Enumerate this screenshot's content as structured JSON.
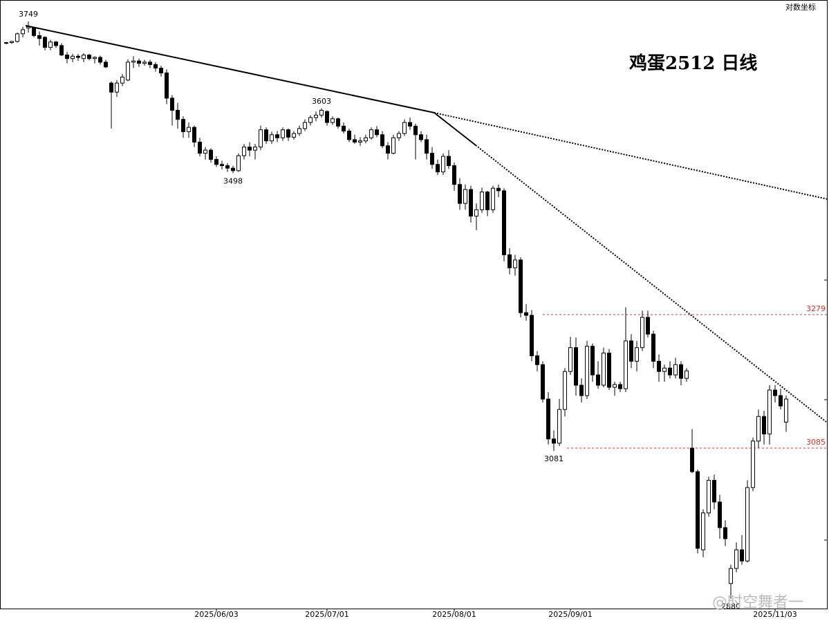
{
  "chart_data": {
    "type": "candlestick",
    "title": "鸡蛋2512 日线",
    "scale_note": "对数坐标",
    "log_scale": true,
    "watermark": "@时空舞者一",
    "up_color": "#ffffff",
    "down_color": "#000000",
    "line_color": "#000000",
    "hline_color": "#e0302a",
    "ylim": [
      2867,
      3786
    ],
    "categories": [
      null,
      null,
      null,
      null,
      null,
      null,
      null,
      null,
      null,
      null,
      null,
      null,
      null,
      null,
      null,
      null,
      null,
      null,
      null,
      null,
      null,
      null,
      null,
      null,
      null,
      null,
      null,
      null,
      null,
      null,
      null,
      null,
      null,
      null,
      null,
      null,
      null,
      null,
      "2025/06/03",
      null,
      null,
      null,
      null,
      null,
      null,
      null,
      null,
      null,
      null,
      null,
      null,
      null,
      null,
      null,
      null,
      null,
      null,
      null,
      "2025/07/01",
      null,
      null,
      null,
      null,
      null,
      null,
      null,
      null,
      null,
      null,
      null,
      null,
      null,
      null,
      null,
      null,
      null,
      null,
      null,
      null,
      null,
      null,
      "2025/08/01",
      null,
      null,
      null,
      null,
      null,
      null,
      null,
      null,
      null,
      null,
      null,
      null,
      null,
      null,
      null,
      null,
      null,
      null,
      null,
      null,
      "2025/09/01",
      null,
      null,
      null,
      null,
      null,
      null,
      null,
      null,
      null,
      null,
      null,
      null,
      null,
      null,
      null,
      null,
      null,
      null,
      null,
      null,
      null,
      null,
      null,
      null,
      null,
      null,
      null,
      null,
      null,
      null,
      null,
      null,
      null,
      null,
      null,
      null,
      "2025/11/03",
      null,
      null
    ],
    "ohlc": [
      [
        3712,
        3714,
        3710,
        3713
      ],
      [
        3713,
        3716,
        3711,
        3715
      ],
      [
        3715,
        3730,
        3713,
        3728
      ],
      [
        3728,
        3740,
        3722,
        3735
      ],
      [
        3738,
        3749,
        3730,
        3740
      ],
      [
        3738,
        3740,
        3722,
        3725
      ],
      [
        3725,
        3732,
        3708,
        3720
      ],
      [
        3722,
        3724,
        3700,
        3705
      ],
      [
        3705,
        3718,
        3700,
        3714
      ],
      [
        3714,
        3716,
        3704,
        3708
      ],
      [
        3708,
        3712,
        3690,
        3692
      ],
      [
        3692,
        3697,
        3678,
        3686
      ],
      [
        3686,
        3694,
        3680,
        3690
      ],
      [
        3690,
        3694,
        3682,
        3688
      ],
      [
        3686,
        3695,
        3680,
        3692
      ],
      [
        3692,
        3694,
        3683,
        3686
      ],
      [
        3686,
        3690,
        3678,
        3688
      ],
      [
        3688,
        3691,
        3676,
        3680
      ],
      [
        3680,
        3684,
        3670,
        3672
      ],
      [
        3645,
        3648,
        3570,
        3630
      ],
      [
        3630,
        3650,
        3622,
        3645
      ],
      [
        3645,
        3660,
        3640,
        3655
      ],
      [
        3650,
        3685,
        3648,
        3680
      ],
      [
        3680,
        3690,
        3670,
        3682
      ],
      [
        3682,
        3686,
        3672,
        3678
      ],
      [
        3678,
        3684,
        3674,
        3680
      ],
      [
        3680,
        3684,
        3670,
        3676
      ],
      [
        3676,
        3680,
        3664,
        3670
      ],
      [
        3670,
        3674,
        3656,
        3662
      ],
      [
        3662,
        3668,
        3610,
        3620
      ],
      [
        3620,
        3625,
        3575,
        3600
      ],
      [
        3600,
        3612,
        3570,
        3585
      ],
      [
        3585,
        3590,
        3555,
        3565
      ],
      [
        3565,
        3580,
        3555,
        3572
      ],
      [
        3572,
        3575,
        3540,
        3548
      ],
      [
        3548,
        3555,
        3525,
        3530
      ],
      [
        3530,
        3540,
        3520,
        3535
      ],
      [
        3535,
        3538,
        3515,
        3520
      ],
      [
        3520,
        3525,
        3508,
        3512
      ],
      [
        3512,
        3518,
        3504,
        3510
      ],
      [
        3510,
        3514,
        3500,
        3506
      ],
      [
        3506,
        3510,
        3498,
        3502
      ],
      [
        3502,
        3530,
        3500,
        3526
      ],
      [
        3526,
        3545,
        3520,
        3540
      ],
      [
        3540,
        3548,
        3525,
        3535
      ],
      [
        3535,
        3545,
        3520,
        3540
      ],
      [
        3540,
        3575,
        3535,
        3568
      ],
      [
        3568,
        3572,
        3545,
        3550
      ],
      [
        3550,
        3565,
        3545,
        3560
      ],
      [
        3560,
        3566,
        3548,
        3555
      ],
      [
        3555,
        3572,
        3550,
        3568
      ],
      [
        3568,
        3570,
        3550,
        3556
      ],
      [
        3556,
        3566,
        3552,
        3562
      ],
      [
        3562,
        3575,
        3558,
        3570
      ],
      [
        3570,
        3585,
        3566,
        3580
      ],
      [
        3580,
        3592,
        3575,
        3588
      ],
      [
        3588,
        3598,
        3582,
        3592
      ],
      [
        3592,
        3603,
        3588,
        3600
      ],
      [
        3598,
        3600,
        3575,
        3580
      ],
      [
        3580,
        3590,
        3576,
        3586
      ],
      [
        3586,
        3588,
        3570,
        3574
      ],
      [
        3574,
        3580,
        3562,
        3566
      ],
      [
        3566,
        3570,
        3548,
        3552
      ],
      [
        3552,
        3560,
        3545,
        3548
      ],
      [
        3548,
        3556,
        3542,
        3550
      ],
      [
        3550,
        3560,
        3546,
        3555
      ],
      [
        3555,
        3572,
        3552,
        3568
      ],
      [
        3568,
        3574,
        3556,
        3560
      ],
      [
        3560,
        3566,
        3538,
        3542
      ],
      [
        3542,
        3548,
        3520,
        3530
      ],
      [
        3530,
        3560,
        3528,
        3555
      ],
      [
        3555,
        3566,
        3550,
        3562
      ],
      [
        3562,
        3585,
        3558,
        3580
      ],
      [
        3580,
        3588,
        3568,
        3574
      ],
      [
        3574,
        3578,
        3520,
        3560
      ],
      [
        3560,
        3566,
        3548,
        3552
      ],
      [
        3552,
        3560,
        3520,
        3530
      ],
      [
        3530,
        3540,
        3505,
        3512
      ],
      [
        3512,
        3520,
        3495,
        3500
      ],
      [
        3500,
        3530,
        3495,
        3525
      ],
      [
        3525,
        3535,
        3505,
        3510
      ],
      [
        3510,
        3515,
        3470,
        3480
      ],
      [
        3480,
        3490,
        3440,
        3450
      ],
      [
        3450,
        3480,
        3440,
        3472
      ],
      [
        3472,
        3478,
        3420,
        3430
      ],
      [
        3430,
        3450,
        3408,
        3440
      ],
      [
        3440,
        3475,
        3435,
        3468
      ],
      [
        3468,
        3470,
        3430,
        3440
      ],
      [
        3440,
        3478,
        3435,
        3474
      ],
      [
        3474,
        3480,
        3460,
        3470
      ],
      [
        3470,
        3474,
        3360,
        3370
      ],
      [
        3370,
        3380,
        3340,
        3350
      ],
      [
        3350,
        3370,
        3338,
        3362
      ],
      [
        3362,
        3366,
        3275,
        3282
      ],
      [
        3282,
        3295,
        3270,
        3278
      ],
      [
        3278,
        3286,
        3210,
        3218
      ],
      [
        3218,
        3225,
        3195,
        3205
      ],
      [
        3205,
        3210,
        3150,
        3155
      ],
      [
        3155,
        3165,
        3090,
        3098
      ],
      [
        3098,
        3110,
        3081,
        3092
      ],
      [
        3092,
        3155,
        3088,
        3140
      ],
      [
        3140,
        3200,
        3130,
        3195
      ],
      [
        3195,
        3246,
        3190,
        3230
      ],
      [
        3230,
        3245,
        3160,
        3175
      ],
      [
        3175,
        3185,
        3150,
        3160
      ],
      [
        3160,
        3240,
        3155,
        3232
      ],
      [
        3232,
        3236,
        3180,
        3190
      ],
      [
        3190,
        3210,
        3170,
        3175
      ],
      [
        3175,
        3230,
        3172,
        3222
      ],
      [
        3222,
        3228,
        3168,
        3172
      ],
      [
        3172,
        3180,
        3160,
        3176
      ],
      [
        3176,
        3180,
        3165,
        3170
      ],
      [
        3170,
        3290,
        3165,
        3240
      ],
      [
        3240,
        3250,
        3200,
        3210
      ],
      [
        3210,
        3240,
        3195,
        3230
      ],
      [
        3230,
        3285,
        3225,
        3275
      ],
      [
        3275,
        3285,
        3245,
        3250
      ],
      [
        3250,
        3255,
        3200,
        3210
      ],
      [
        3210,
        3220,
        3180,
        3195
      ],
      [
        3195,
        3205,
        3180,
        3200
      ],
      [
        3200,
        3210,
        3185,
        3190
      ],
      [
        3190,
        3215,
        3185,
        3205
      ],
      [
        3205,
        3210,
        3175,
        3185
      ],
      [
        3185,
        3200,
        3180,
        3196
      ],
      [
        3085,
        3112,
        3050,
        3052
      ],
      [
        3052,
        3055,
        2940,
        2947
      ],
      [
        2945,
        3000,
        2935,
        2995
      ],
      [
        2995,
        3045,
        2990,
        3040
      ],
      [
        3040,
        3048,
        3000,
        3010
      ],
      [
        3010,
        3020,
        2960,
        2975
      ],
      [
        2975,
        2985,
        2950,
        2960
      ],
      [
        2900,
        2925,
        2880,
        2920
      ],
      [
        2920,
        2955,
        2915,
        2945
      ],
      [
        2945,
        2965,
        2925,
        2930
      ],
      [
        2930,
        3040,
        2928,
        3030
      ],
      [
        3030,
        3100,
        3025,
        3095
      ],
      [
        3095,
        3140,
        3085,
        3130
      ],
      [
        3130,
        3138,
        3090,
        3105
      ],
      [
        3105,
        3175,
        3090,
        3168
      ],
      [
        3168,
        3175,
        3150,
        3160
      ],
      [
        3160,
        3170,
        3140,
        3145
      ],
      [
        3122,
        3160,
        3108,
        3155
      ]
    ],
    "annotations": [
      3749,
      3603,
      3498,
      3081,
      2880
    ],
    "hlines": [
      3279,
      3085
    ]
  }
}
